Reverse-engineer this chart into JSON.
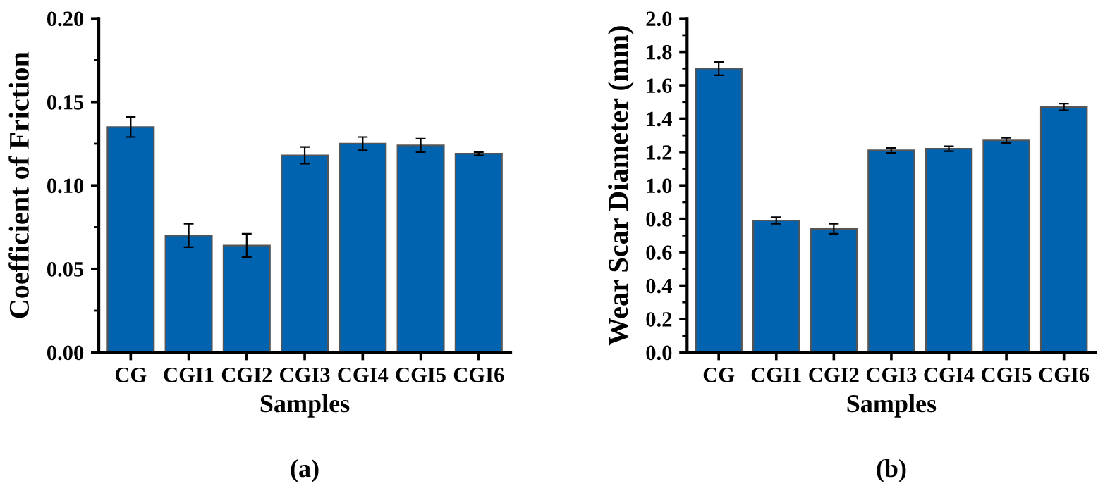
{
  "chart_data": [
    {
      "type": "bar",
      "xlabel": "Samples",
      "ylabel": "Coefficient of Friction",
      "annotations": [
        "(a)"
      ],
      "categories": [
        "CG",
        "CGI1",
        "CGI2",
        "CGI3",
        "CGI4",
        "CGI5",
        "CGI6"
      ],
      "values": [
        0.135,
        0.07,
        0.064,
        0.118,
        0.125,
        0.124,
        0.119
      ],
      "errors": [
        0.006,
        0.007,
        0.007,
        0.005,
        0.004,
        0.004,
        0.001
      ],
      "color": "#0063b0",
      "ylim": [
        0,
        0.2
      ],
      "yticks": [
        {
          "value": 0,
          "label": "0.00"
        },
        0.05,
        {
          "value": 0.1,
          "label": "0.10"
        },
        0.15,
        {
          "value": 0.2,
          "label": "0.20"
        }
      ],
      "grid": false
    },
    {
      "type": "bar",
      "xlabel": "Samples",
      "ylabel": "Wear Scar Diameter (mm)",
      "annotations": [
        "(b)"
      ],
      "categories": [
        "CG",
        "CGI1",
        "CGI2",
        "CGI3",
        "CGI4",
        "CGI5",
        "CGI6"
      ],
      "values": [
        1.7,
        0.79,
        0.74,
        1.21,
        1.22,
        1.27,
        1.47
      ],
      "errors": [
        0.04,
        0.02,
        0.03,
        0.015,
        0.015,
        0.015,
        0.02
      ],
      "color": "#0063b0",
      "ylim": [
        0,
        2.0
      ],
      "yticks": [
        {
          "value": 0,
          "label": "0.0"
        },
        0.2,
        0.4,
        0.6,
        0.8,
        {
          "value": 1.0,
          "label": "1.0"
        },
        1.2,
        1.4,
        1.6,
        1.8,
        {
          "value": 2.0,
          "label": "2.0"
        }
      ],
      "grid": false
    }
  ]
}
